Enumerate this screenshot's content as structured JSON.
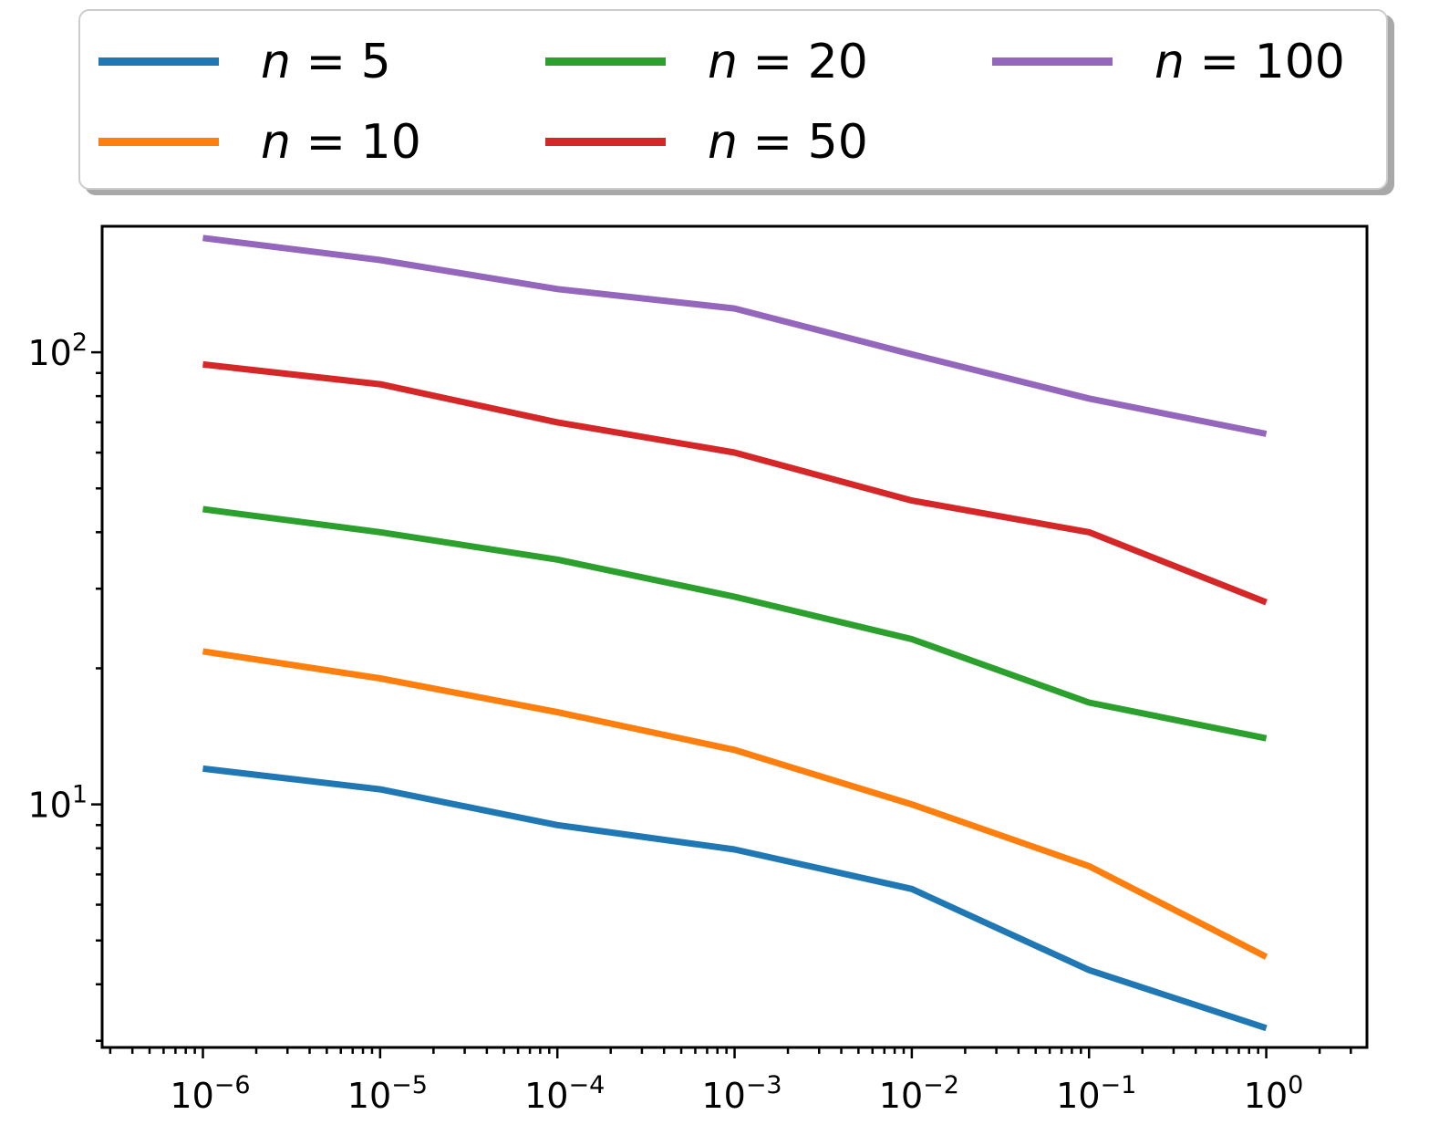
{
  "chart_data": {
    "type": "line",
    "title": "",
    "xlabel": "",
    "ylabel": "",
    "x_scale": "log",
    "y_scale": "log",
    "x": [
      1e-06,
      1e-05,
      0.0001,
      0.001,
      0.01,
      0.1,
      1
    ],
    "xlim": [
      2.7e-07,
      3.7
    ],
    "ylim": [
      2.9,
      190
    ],
    "x_ticks": [
      {
        "value": 1e-06,
        "base": "10",
        "exp": "−6"
      },
      {
        "value": 1e-05,
        "base": "10",
        "exp": "−5"
      },
      {
        "value": 0.0001,
        "base": "10",
        "exp": "−4"
      },
      {
        "value": 0.001,
        "base": "10",
        "exp": "−3"
      },
      {
        "value": 0.01,
        "base": "10",
        "exp": "−2"
      },
      {
        "value": 0.1,
        "base": "10",
        "exp": "−1"
      },
      {
        "value": 1,
        "base": "10",
        "exp": "0"
      }
    ],
    "y_ticks": [
      {
        "value": 10,
        "base": "10",
        "exp": "1"
      },
      {
        "value": 100,
        "base": "10",
        "exp": "2"
      }
    ],
    "grid": false,
    "legend": {
      "placement": "top, outside plot",
      "columns": 3
    },
    "series": [
      {
        "name": "n = 5",
        "var": "n",
        "val": "5",
        "color": "#1f77b4",
        "values": [
          12.0,
          10.8,
          9.0,
          7.95,
          6.5,
          4.3,
          3.2
        ]
      },
      {
        "name": "n = 10",
        "var": "n",
        "val": "10",
        "color": "#ff7f0e",
        "values": [
          21.8,
          19.0,
          16.0,
          13.2,
          10.0,
          7.3,
          4.6
        ]
      },
      {
        "name": "n = 20",
        "var": "n",
        "val": "20",
        "color": "#2ca02c",
        "values": [
          45.0,
          40.0,
          34.8,
          28.8,
          23.2,
          16.8,
          14.0
        ]
      },
      {
        "name": "n = 50",
        "var": "n",
        "val": "50",
        "color": "#d62728",
        "values": [
          94.0,
          85.0,
          70.0,
          60.0,
          47.0,
          40.0,
          28.0
        ]
      },
      {
        "name": "n = 100",
        "var": "n",
        "val": "100",
        "color": "#9467bd",
        "values": [
          179.0,
          160.0,
          138.0,
          125.0,
          99.0,
          79.0,
          66.0
        ]
      }
    ]
  }
}
